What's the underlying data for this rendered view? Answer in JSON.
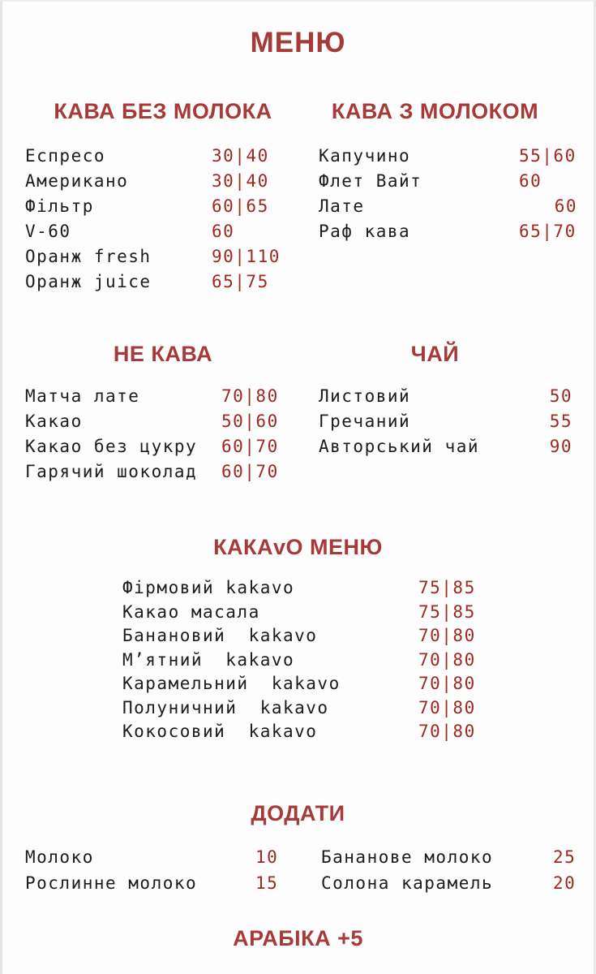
{
  "title": "МЕНЮ",
  "footer": "АРАБІКА +5",
  "colors": {
    "heading": "#a73a39",
    "price": "#a02820",
    "text": "#1c1c1e",
    "background": "#fdfdfd"
  },
  "sections": {
    "coffee_no_milk": {
      "title": "КАВА БЕЗ МОЛОКА",
      "items": [
        {
          "name": "Еспресо",
          "price": "30|40"
        },
        {
          "name": "Американо",
          "price": "30|40"
        },
        {
          "name": "Фільтр",
          "price": "60|65"
        },
        {
          "name": "V-60",
          "price": "60"
        },
        {
          "name": "Оранж fresh",
          "price": "90|110"
        },
        {
          "name": "Оранж juice",
          "price": "65|75"
        }
      ]
    },
    "coffee_with_milk": {
      "title": "КАВА З МОЛОКОМ",
      "items": [
        {
          "name": "Капучино",
          "price": "55|60"
        },
        {
          "name": "Флет Вайт",
          "price": "60"
        },
        {
          "name": "Лате",
          "price": "60"
        },
        {
          "name": "Раф кава",
          "price": "65|70"
        }
      ]
    },
    "not_coffee": {
      "title": "НЕ КАВА",
      "items": [
        {
          "name": "Матча лате",
          "price": "70|80"
        },
        {
          "name": "Какао",
          "price": "50|60"
        },
        {
          "name": "Какао без цукру",
          "price": "60|70"
        },
        {
          "name": "Гарячий шоколад",
          "price": "60|70"
        }
      ]
    },
    "tea": {
      "title": "ЧАЙ",
      "items": [
        {
          "name": "Листовий",
          "price": "50"
        },
        {
          "name": "Гречаний",
          "price": "55"
        },
        {
          "name": "Авторський чай",
          "price": "90"
        }
      ]
    },
    "kakavo": {
      "title": "КАКАvО МЕНЮ",
      "items": [
        {
          "name": "Фірмовий kakavo",
          "price": "75|85"
        },
        {
          "name": "Какао масала",
          "price": "75|85"
        },
        {
          "name": "Банановий  kakavo",
          "price": "70|80"
        },
        {
          "name": "М’ятний  kakavo",
          "price": "70|80"
        },
        {
          "name": "Карамельний  kakavo",
          "price": "70|80"
        },
        {
          "name": "Полуничний  kakavo",
          "price": "70|80"
        },
        {
          "name": "Кокосовий  kakavo",
          "price": "70|80"
        }
      ]
    },
    "add_ons": {
      "title": "ДОДАТИ",
      "left_items": [
        {
          "name": "Молоко",
          "price": "10"
        },
        {
          "name": "Рослинне молоко",
          "price": "15"
        }
      ],
      "right_items": [
        {
          "name": "Бананове молоко",
          "price": "25"
        },
        {
          "name": "Солона карамель",
          "price": "20"
        }
      ]
    }
  }
}
